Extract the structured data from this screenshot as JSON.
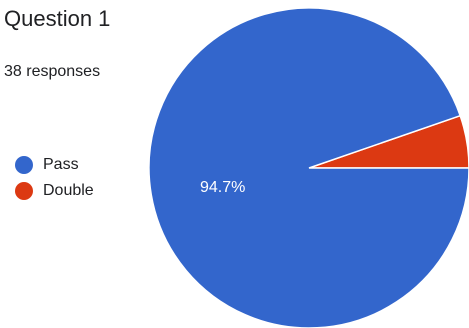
{
  "question": {
    "title": "Question 1",
    "responses_label": "38 responses"
  },
  "chart_data": {
    "type": "pie",
    "slices": [
      {
        "label": "Pass",
        "percent": 94.7,
        "color": "#3366cc",
        "value_label": "94.7%"
      },
      {
        "label": "Double",
        "percent": 5.3,
        "color": "#dc3912",
        "value_label": ""
      }
    ],
    "legend_position": "left"
  }
}
